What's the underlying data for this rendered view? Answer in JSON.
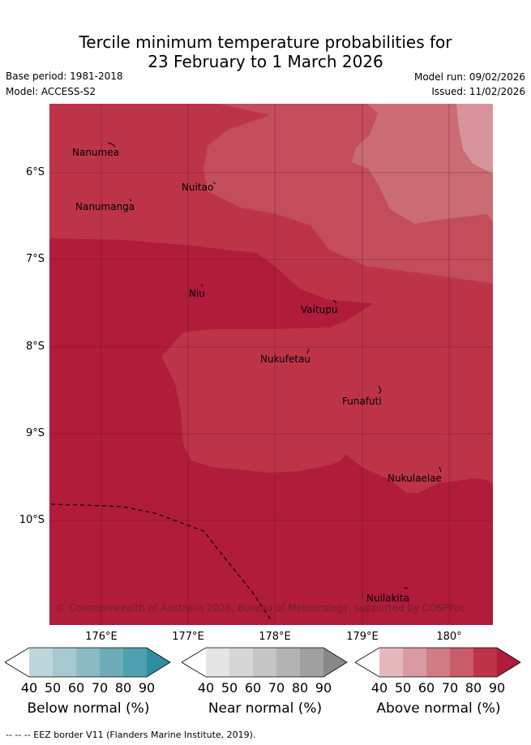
{
  "title_line1": "Tercile minimum temperature probabilities for",
  "title_line2": "23 February to 1 March 2026",
  "base_period": "Base period: 1981-2018",
  "model": "Model: ACCESS-S2",
  "model_run": "Model run: 09/02/2026",
  "issued": "Issued: 11/02/2026",
  "lat_labels": [
    "6°S",
    "7°S",
    "8°S",
    "9°S",
    "10°S"
  ],
  "lon_labels": [
    "176°E",
    "177°E",
    "178°E",
    "179°E",
    "180°"
  ],
  "places": {
    "nanumea": "Nanumea",
    "nuitao": "Nuitao",
    "nanumanga": "Nanumanga",
    "niu": "Niu",
    "vaitupu": "Vaitupu",
    "nukufetau": "Nukufetau",
    "funafuti": "Funafuti",
    "nukulaelae": "Nukulaelae",
    "nuilakita": "Nuilakita"
  },
  "copyright": "© Commonwealth of Australia 2026, Bureau of Meteorology, supported by COSPPac",
  "colorbars": [
    {
      "label": "Below normal (%)",
      "ticks": [
        "40",
        "50",
        "60",
        "70",
        "80",
        "90"
      ],
      "colors": [
        "#ffffff",
        "#bcd6db",
        "#a6c9cf",
        "#8cbac3",
        "#6eacb8",
        "#4ea0ae",
        "#2f8ea0"
      ]
    },
    {
      "label": "Near normal (%)",
      "ticks": [
        "40",
        "50",
        "60",
        "70",
        "80",
        "90"
      ],
      "colors": [
        "#ffffff",
        "#e5e5e5",
        "#d7d7d7",
        "#c6c6c6",
        "#b3b3b3",
        "#a0a0a0",
        "#888888"
      ]
    },
    {
      "label": "Above normal (%)",
      "ticks": [
        "40",
        "50",
        "60",
        "70",
        "80",
        "90"
      ],
      "colors": [
        "#ffffff",
        "#e4b9be",
        "#d99aa1",
        "#d17c85",
        "#c95c68",
        "#bd3449",
        "#b01c3a"
      ]
    }
  ],
  "footer": "--  --  -- EEZ border V11 (Flanders Marine Institute, 2019).",
  "map_colors": {
    "p90": "#b01c3a",
    "p80": "#bd3449",
    "p70": "#c34d5a",
    "p60": "#cb6c74",
    "p50": "#d7949a"
  }
}
